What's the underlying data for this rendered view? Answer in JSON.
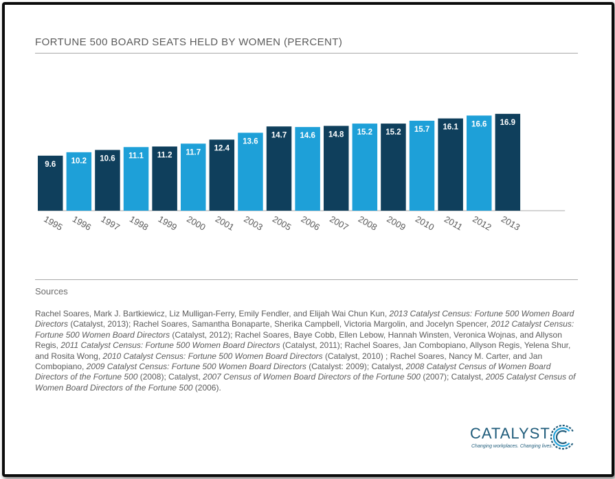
{
  "title": "FORTUNE 500 BOARD SEATS HELD BY WOMEN (PERCENT)",
  "colors": {
    "dark": "#0f3f5c",
    "light": "#1ea0d8",
    "text": "#5a5a5a"
  },
  "chart_data": {
    "type": "bar",
    "categories": [
      "1995",
      "1996",
      "1997",
      "1998",
      "1999",
      "2000",
      "2001",
      "2003",
      "2005",
      "2006",
      "2007",
      "2008",
      "2009",
      "2010",
      "2011",
      "2012",
      "2013"
    ],
    "values": [
      9.6,
      10.2,
      10.6,
      11.1,
      11.2,
      11.7,
      12.4,
      13.6,
      14.7,
      14.6,
      14.8,
      15.2,
      15.2,
      15.7,
      16.1,
      16.6,
      16.9
    ],
    "value_labels": [
      "9.6",
      "10.2",
      "10.6",
      "11.1",
      "11.2",
      "11.7",
      "12.4",
      "13.6",
      "14.7",
      "14.6",
      "14.8",
      "15.2",
      "15.2",
      "15.7",
      "16.1",
      "16.6",
      "16.9"
    ],
    "bar_colors": [
      "dark",
      "light",
      "dark",
      "light",
      "dark",
      "light",
      "dark",
      "light",
      "dark",
      "light",
      "dark",
      "light",
      "dark",
      "light",
      "dark",
      "light",
      "dark"
    ],
    "title": "FORTUNE 500 BOARD SEATS HELD BY WOMEN (PERCENT)",
    "xlabel": "",
    "ylabel": "",
    "ylim": [
      0,
      18
    ],
    "grid": false,
    "data_labels": "inside-top"
  },
  "sources": {
    "label": "Sources",
    "segments": [
      {
        "t": "Rachel Soares, Mark J. Bartkiewicz, Liz Mulligan-Ferry, Emily Fendler, and Elijah Wai Chun Kun, ",
        "i": false
      },
      {
        "t": "2013 Catalyst Census: Fortune 500 Women Board Directors",
        "i": true
      },
      {
        "t": " (Catalyst, 2013); Rachel Soares, Samantha Bonaparte, Sherika Campbell, Victoria Margolin, and Jocelyn Spencer, ",
        "i": false
      },
      {
        "t": "2012 Catalyst Census: Fortune 500 Women Board Directors",
        "i": true
      },
      {
        "t": " (Catalyst, 2012); Rachel Soares, Baye Cobb, Ellen Lebow, Hannah Winsten, Veronica Wojnas, and Allyson Regis, ",
        "i": false
      },
      {
        "t": "2011 Catalyst Census: Fortune 500 Women Board Directors",
        "i": true
      },
      {
        "t": " (Catalyst, 2011); Rachel Soares, Jan Combopiano, Allyson Regis, Yelena Shur, and Rosita Wong, ",
        "i": false
      },
      {
        "t": "2010 Catalyst Census: Fortune 500 Women Board Directors",
        "i": true
      },
      {
        "t": " (Catalyst, 2010) ; Rachel Soares, Nancy M. Carter, and Jan Combopiano, ",
        "i": false
      },
      {
        "t": "2009 Catalyst Census: Fortune 500 Women Board Directors",
        "i": true
      },
      {
        "t": " (Catalyst: 2009); Catalyst, ",
        "i": false
      },
      {
        "t": "2008 Catalyst Census of Women Board Directors of the Fortune 500",
        "i": true
      },
      {
        "t": " (2008); Catalyst, ",
        "i": false
      },
      {
        "t": "2007 Census of Women Board Directors of the Fortune 500",
        "i": true
      },
      {
        "t": " (2007); Catalyst, ",
        "i": false
      },
      {
        "t": "2005 Catalyst Census of Women Board Directors of the Fortune 500",
        "i": true
      },
      {
        "t": " (2006).",
        "i": false
      }
    ]
  },
  "logo": {
    "name": "CATALYST",
    "tagline": "Changing workplaces. Changing lives."
  }
}
